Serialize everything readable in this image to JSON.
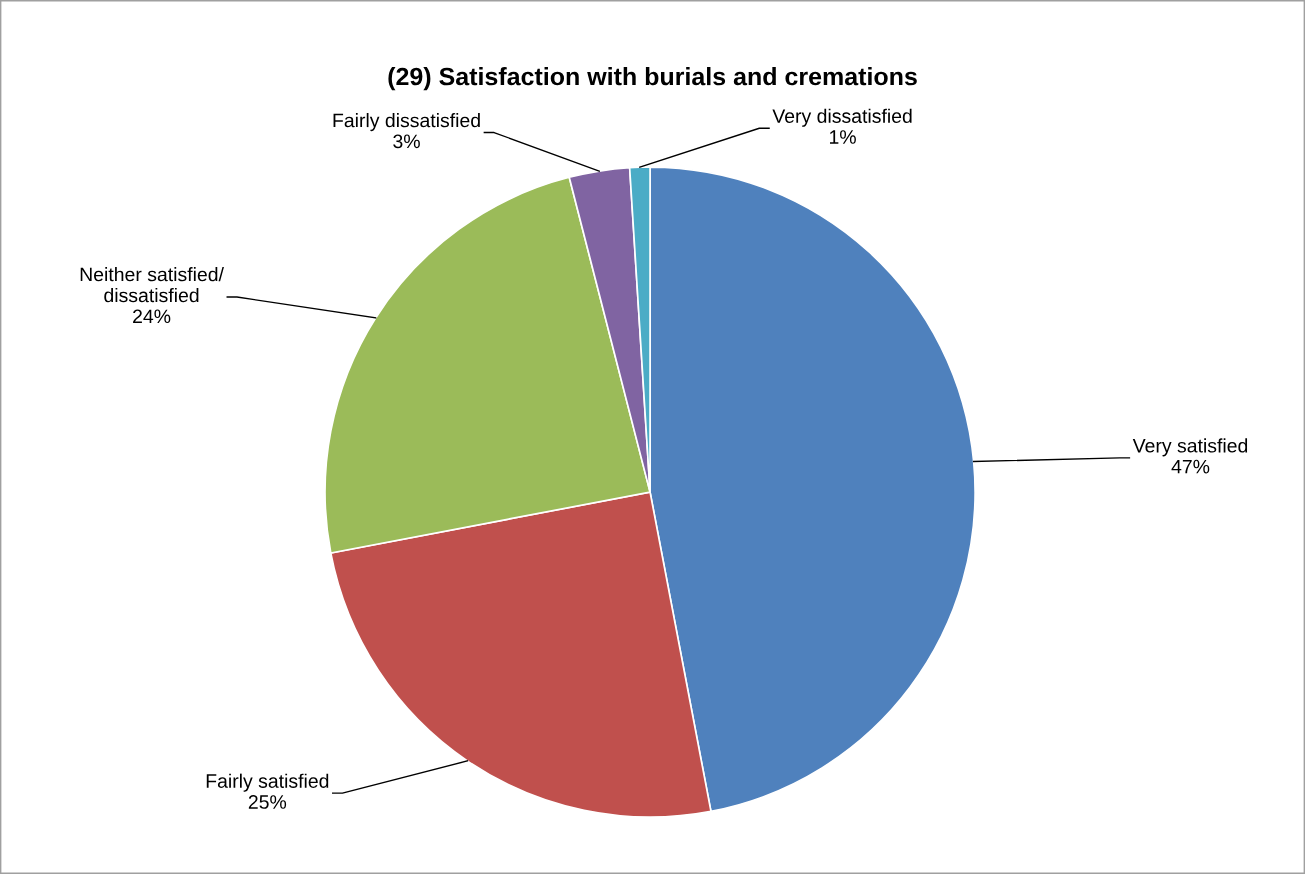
{
  "chart_data": {
    "type": "pie",
    "title": "(29) Satisfaction with burials and cremations",
    "categories": [
      "Very satisfied",
      "Fairly satisfied",
      "Neither satisfied/\ndissatisfied",
      "Fairly dissatisfied",
      "Very dissatisfied"
    ],
    "values": [
      47,
      25,
      24,
      3,
      1
    ],
    "colors": [
      "#4f81bd",
      "#c0504d",
      "#9bbb59",
      "#8064a2",
      "#4bacc6"
    ],
    "value_labels": [
      "47%",
      "25%",
      "24%",
      "3%",
      "1%"
    ],
    "legend": false
  }
}
